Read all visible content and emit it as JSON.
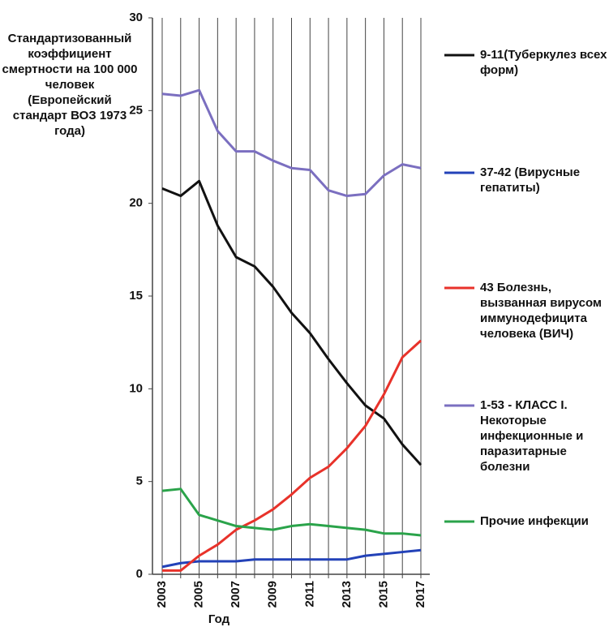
{
  "chart_data": {
    "type": "line",
    "y_label": "Стандартизованный коэффициент смертности на 100 000 человек (Европейский стандарт ВОЗ 1973 года)",
    "x_label": "Год",
    "categories": [
      "2003",
      null,
      "2005",
      null,
      "2007",
      null,
      "2009",
      null,
      "2011",
      null,
      "2013",
      null,
      "2015",
      null,
      "2017"
    ],
    "ylim": [
      0,
      30
    ],
    "yticks": [
      0,
      5,
      10,
      15,
      20,
      25,
      30
    ],
    "grid": "x",
    "series": [
      {
        "name": "9-11(Туберкулез всех форм)",
        "color": "#111111",
        "values": [
          20.8,
          20.4,
          21.2,
          18.8,
          17.1,
          16.6,
          15.5,
          14.1,
          13.0,
          11.6,
          10.3,
          9.1,
          8.4,
          7.0,
          5.9
        ]
      },
      {
        "name": "37-42 (Вирусные гепатиты)",
        "color": "#2342b8",
        "values": [
          0.4,
          0.6,
          0.7,
          0.7,
          0.7,
          0.8,
          0.8,
          0.8,
          0.8,
          0.8,
          0.8,
          1.0,
          1.1,
          1.2,
          1.3
        ]
      },
      {
        "name": "43 Болезнь, вызванная вирусом иммунодефицита человека (ВИЧ)",
        "color": "#e8322a",
        "values": [
          0.2,
          0.2,
          1.0,
          1.6,
          2.4,
          2.9,
          3.5,
          4.3,
          5.2,
          5.8,
          6.8,
          8.0,
          9.7,
          11.7,
          12.6
        ]
      },
      {
        "name": "1-53 - КЛАСС I. Некоторые инфекционные и паразитарные болезни",
        "color": "#7b6fc0",
        "values": [
          25.9,
          25.8,
          26.1,
          23.9,
          22.8,
          22.8,
          22.3,
          21.9,
          21.8,
          20.7,
          20.4,
          20.5,
          21.5,
          22.1,
          21.9
        ]
      },
      {
        "name": "Прочие инфекции",
        "color": "#2aa34a",
        "values": [
          4.5,
          4.6,
          3.2,
          2.9,
          2.6,
          2.5,
          2.4,
          2.6,
          2.7,
          2.6,
          2.5,
          2.4,
          2.2,
          2.2,
          2.1
        ]
      }
    ]
  }
}
